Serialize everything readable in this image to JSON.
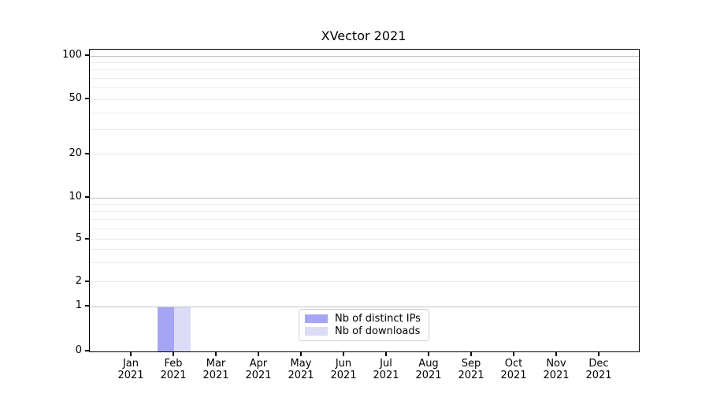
{
  "figure": {
    "title": "XVector 2021"
  },
  "chart_data": {
    "type": "bar",
    "title": "XVector 2021",
    "x_categories": [
      {
        "month": "Jan",
        "year": "2021"
      },
      {
        "month": "Feb",
        "year": "2021"
      },
      {
        "month": "Mar",
        "year": "2021"
      },
      {
        "month": "Apr",
        "year": "2021"
      },
      {
        "month": "May",
        "year": "2021"
      },
      {
        "month": "Jun",
        "year": "2021"
      },
      {
        "month": "Jul",
        "year": "2021"
      },
      {
        "month": "Aug",
        "year": "2021"
      },
      {
        "month": "Sep",
        "year": "2021"
      },
      {
        "month": "Oct",
        "year": "2021"
      },
      {
        "month": "Nov",
        "year": "2021"
      },
      {
        "month": "Dec",
        "year": "2021"
      }
    ],
    "series": [
      {
        "name": "Nb of distinct IPs",
        "color": "#a5a5f4",
        "values": [
          0,
          1,
          0,
          0,
          0,
          0,
          0,
          0,
          0,
          0,
          0,
          0
        ]
      },
      {
        "name": "Nb of downloads",
        "color": "#dcdcf9",
        "values": [
          0,
          1,
          0,
          0,
          0,
          0,
          0,
          0,
          0,
          0,
          0,
          0
        ]
      }
    ],
    "y_axis": {
      "scale": "log-like with 0 baseline",
      "tick_labels": [
        "0",
        "1",
        "2",
        "5",
        "10",
        "20",
        "50",
        "100"
      ],
      "decade_gridline_values": [
        1,
        10,
        100
      ],
      "light_gridline_values": [
        2,
        5,
        20,
        50
      ],
      "minor_gridline_values": [
        3,
        4,
        6,
        7,
        8,
        9,
        30,
        40,
        60,
        70,
        80,
        90
      ],
      "ylim": [
        0,
        100
      ]
    },
    "legend_position": "inside lower center",
    "grid": "horizontal, major and minor"
  },
  "colors": {
    "axis_spine": "#000000",
    "grid_major": "#c2c2c2",
    "grid_minor": "#ececec",
    "legend_border": "#cccccc",
    "background": "#ffffff"
  }
}
